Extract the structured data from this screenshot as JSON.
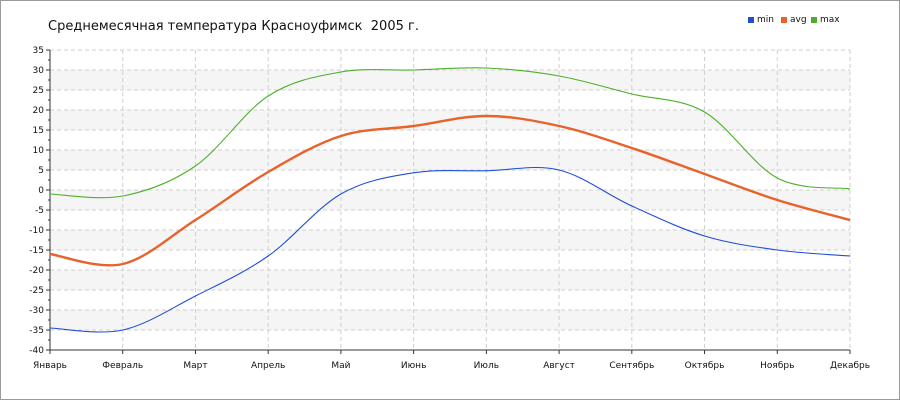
{
  "chart_data": {
    "type": "line",
    "title": "Среднемесячная температура Красноуфимск  2005 г.",
    "categories": [
      "Январь",
      "Февраль",
      "Март",
      "Апрель",
      "Май",
      "Июнь",
      "Июль",
      "Август",
      "Сентябрь",
      "Октябрь",
      "Ноябрь",
      "Декабрь"
    ],
    "series": [
      {
        "name": "min",
        "color": "#1f4fd6",
        "values": [
          -34.5,
          -35.0,
          -26.5,
          -16.5,
          -1.0,
          4.3,
          4.8,
          5.0,
          -4.0,
          -11.5,
          -15.0,
          -16.5
        ]
      },
      {
        "name": "avg",
        "color": "#e8622a",
        "values": [
          -16.0,
          -18.5,
          -7.5,
          4.5,
          13.5,
          16.0,
          18.5,
          16.0,
          10.5,
          4.0,
          -2.5,
          -7.5
        ]
      },
      {
        "name": "max",
        "color": "#4caf2a",
        "values": [
          -1.0,
          -1.5,
          6.0,
          23.5,
          29.5,
          30.0,
          30.5,
          28.5,
          24.0,
          19.5,
          3.0,
          0.3
        ]
      }
    ],
    "ylim": [
      -40,
      35
    ],
    "yticks": [
      35,
      30,
      25,
      20,
      15,
      10,
      5,
      0,
      -5,
      -10,
      -15,
      -20,
      -25,
      -30,
      -35,
      -40
    ],
    "xlabel": "",
    "ylabel": "",
    "grid": true,
    "legend_position": "top-right"
  }
}
